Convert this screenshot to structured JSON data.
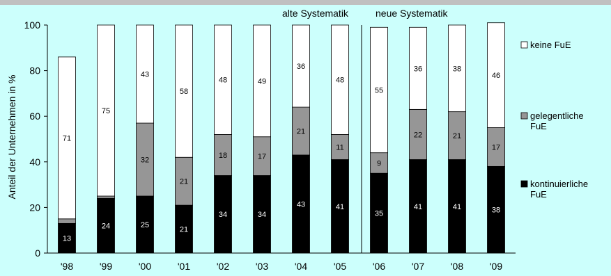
{
  "chart_data": {
    "type": "stacked-bar",
    "categories": [
      "'98",
      "'99",
      "'00",
      "'01",
      "'02",
      "'03",
      "'04",
      "'05",
      "'06",
      "'07",
      "'08",
      "'09"
    ],
    "series": [
      {
        "name": "kontinuierliche FuE",
        "color": "#000000",
        "values": [
          13,
          24,
          25,
          21,
          34,
          34,
          43,
          41,
          35,
          41,
          41,
          38
        ]
      },
      {
        "name": "gelegentliche FuE",
        "color": "#969696",
        "values": [
          2,
          1,
          32,
          21,
          18,
          17,
          21,
          11,
          9,
          22,
          21,
          17
        ]
      },
      {
        "name": "keine FuE",
        "color": "#ffffff",
        "values": [
          71,
          75,
          43,
          58,
          48,
          49,
          36,
          48,
          55,
          36,
          38,
          46
        ]
      }
    ],
    "ylabel": "Anteil der Unternehmen in %",
    "yticks": [
      0,
      20,
      40,
      60,
      80,
      100
    ],
    "ylim": [
      0,
      100
    ],
    "annotations": [
      "alte Systematik",
      "neue Systematik"
    ],
    "legend_position": "right",
    "grid": false
  }
}
